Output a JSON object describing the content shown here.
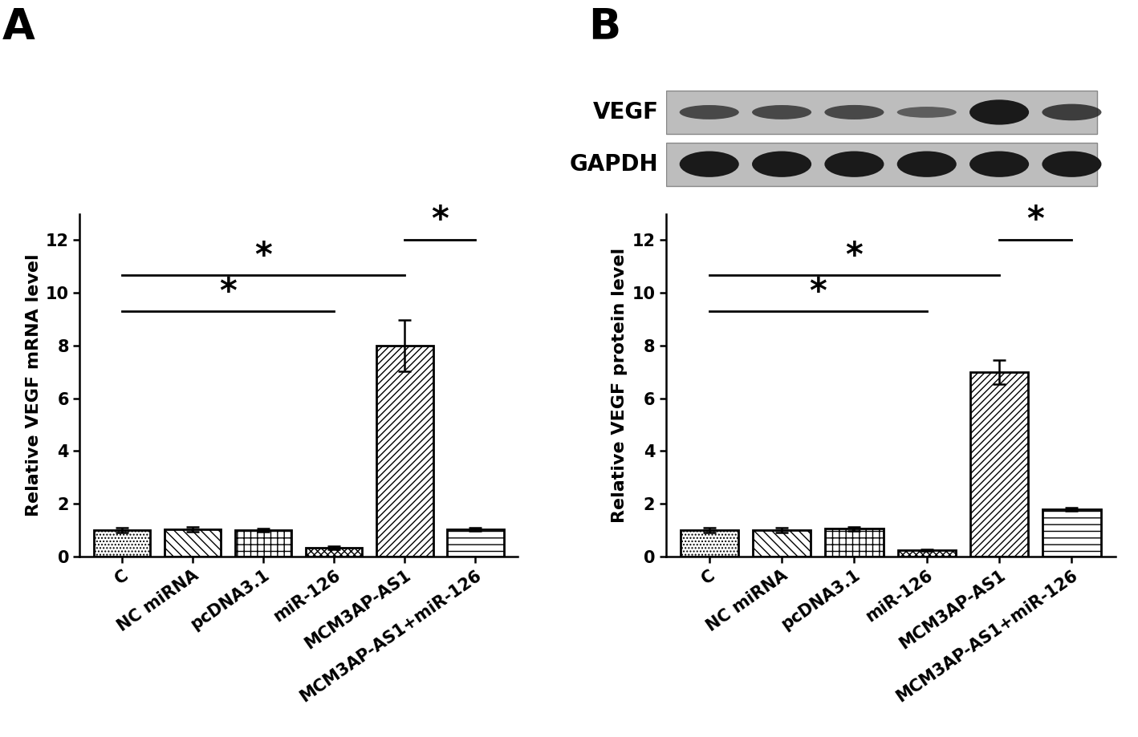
{
  "chart_data": [
    {
      "type": "bar",
      "panel": "A",
      "y_label": "Relative VEGF mRNA level",
      "categories": [
        "C",
        "NC miRNA",
        "pcDNA3.1",
        "miR-126",
        "MCM3AP-AS1",
        "MCM3AP-AS1+miR-126"
      ],
      "values": [
        1.0,
        1.03,
        1.0,
        0.33,
        8.0,
        1.03
      ],
      "errors": [
        0.08,
        0.08,
        0.07,
        0.05,
        0.97,
        0.07
      ],
      "color": "#ffffff",
      "ylim": [
        0,
        13
      ],
      "yticks": [
        0,
        2,
        4,
        6,
        8,
        10,
        12
      ],
      "significance": [
        {
          "groups": [
            "C",
            "miR-126"
          ],
          "label": "*"
        },
        {
          "groups": [
            "C",
            "MCM3AP-AS1"
          ],
          "label": "*"
        },
        {
          "groups": [
            "MCM3AP-AS1",
            "MCM3AP-AS1+miR-126"
          ],
          "label": "*"
        }
      ]
    },
    {
      "type": "bar",
      "panel": "B",
      "y_label": "Relative VEGF protein level",
      "blot_rows": [
        "VEGF",
        "GAPDH"
      ],
      "categories": [
        "C",
        "NC miRNA",
        "pcDNA3.1",
        "miR-126",
        "MCM3AP-AS1",
        "MCM3AP-AS1+miR-126"
      ],
      "values": [
        1.0,
        1.0,
        1.05,
        0.25,
        7.0,
        1.8
      ],
      "errors": [
        0.08,
        0.1,
        0.07,
        0.03,
        0.45,
        0.06
      ],
      "color": "#ffffff",
      "ylim": [
        0,
        13
      ],
      "yticks": [
        0,
        2,
        4,
        6,
        8,
        10,
        12
      ],
      "significance": [
        {
          "groups": [
            "C",
            "miR-126"
          ],
          "label": "*"
        },
        {
          "groups": [
            "C",
            "MCM3AP-AS1"
          ],
          "label": "*"
        },
        {
          "groups": [
            "MCM3AP-AS1",
            "MCM3AP-AS1+miR-126"
          ],
          "label": "*"
        }
      ]
    }
  ]
}
